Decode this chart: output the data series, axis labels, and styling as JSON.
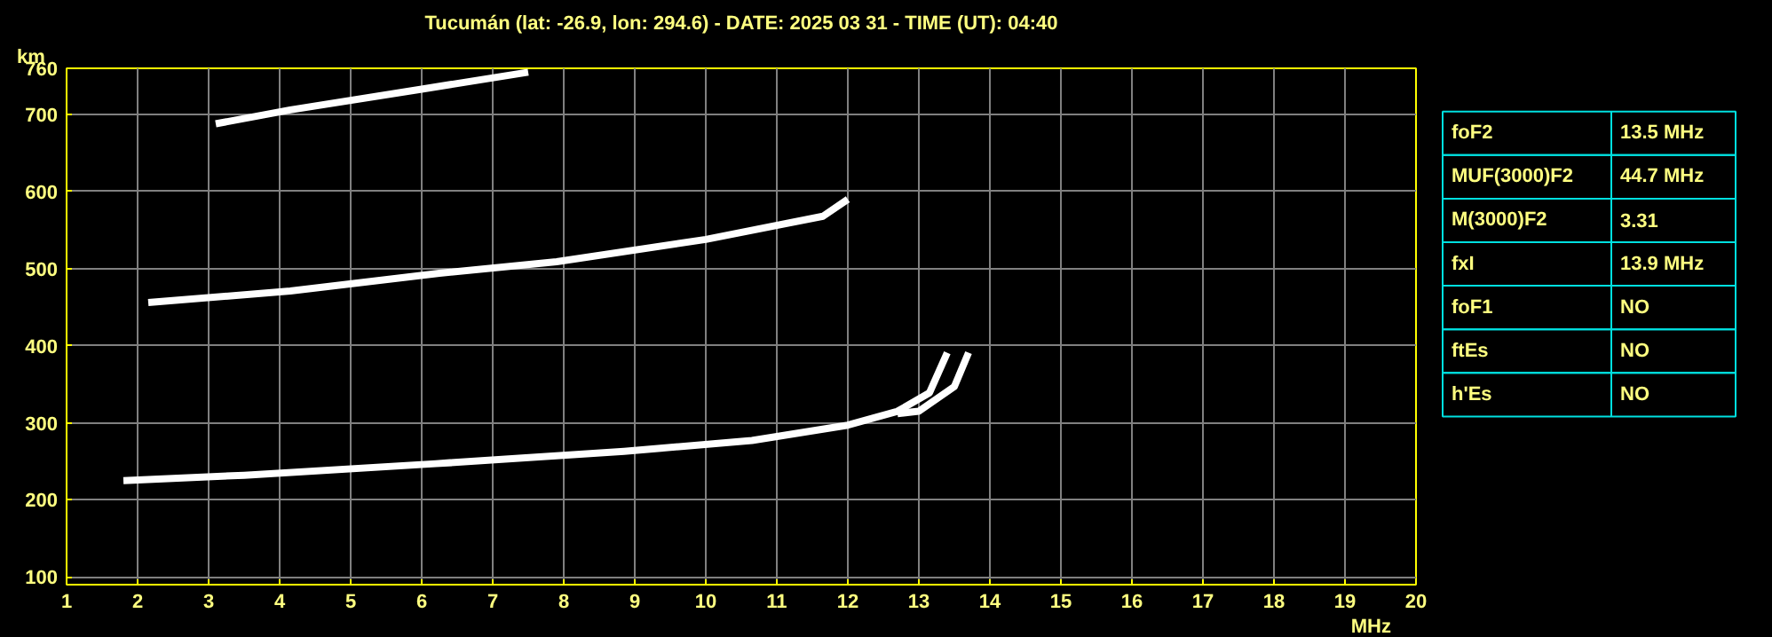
{
  "chart_data": [
    {
      "type": "line",
      "title": "Tucumán (lat: -26.9, lon: 294.6) - DATE: 2025 03 31 - TIME (UT): 04:40",
      "xlabel": "MHz",
      "ylabel": "km",
      "xlim": [
        1,
        20
      ],
      "ylim": [
        90,
        760
      ],
      "xticks": [
        1,
        2,
        3,
        4,
        5,
        6,
        7,
        8,
        9,
        10,
        11,
        12,
        13,
        14,
        15,
        16,
        17,
        18,
        19,
        20
      ],
      "yticks": [
        100,
        200,
        300,
        400,
        500,
        600,
        700,
        760
      ],
      "grid": true,
      "marker": "none",
      "line_style": "solid",
      "series": [
        {
          "color": "#ffffff",
          "x": [
            1.8,
            3.5,
            6.2,
            8.85,
            10.65,
            12.0,
            12.7,
            13.15,
            13.4
          ],
          "values": [
            225,
            232,
            247,
            263,
            277,
            297,
            315,
            339,
            391
          ]
        },
        {
          "color": "#ffffff",
          "x": [
            12.7,
            13.0,
            13.5,
            13.7
          ],
          "values": [
            312,
            315,
            347,
            391
          ]
        },
        {
          "color": "#ffffff",
          "x": [
            2.15,
            4.15,
            6.25,
            7.9,
            10.0,
            11.65,
            12.0
          ],
          "values": [
            456,
            471,
            494,
            509,
            538,
            568,
            590
          ]
        },
        {
          "color": "#ffffff",
          "x": [
            3.1,
            4.15,
            6.0,
            7.5
          ],
          "values": [
            688,
            706,
            733,
            755
          ]
        }
      ]
    },
    {
      "type": "other",
      "annotations": [
        "foF2",
        "13.5 MHz",
        "MUF(3000)F2",
        "44.7 MHz",
        "M(3000)F2",
        "3.31",
        "fxI",
        "13.9 MHz",
        "foF1",
        "NO",
        "ftEs",
        "NO",
        "h'Es",
        "NO"
      ]
    }
  ]
}
